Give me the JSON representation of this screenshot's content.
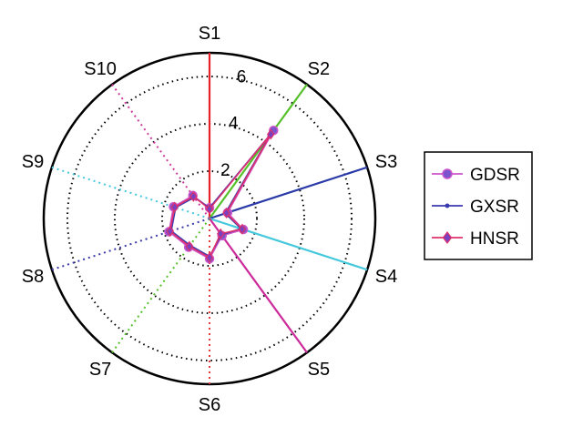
{
  "chart_data": {
    "type": "polar-radar",
    "title": "",
    "spokes": [
      "S1",
      "S2",
      "S3",
      "S4",
      "S5",
      "S6",
      "S7",
      "S8",
      "S9",
      "S10"
    ],
    "spoke_colors": [
      "#e8202a",
      "#55c02a",
      "#2a3aa8",
      "#44c8dc",
      "#cc2a9a",
      "#e83a3a",
      "#55c02a",
      "#3a3aa8",
      "#44c8dc",
      "#cc3a9a"
    ],
    "spoke_full_length": [
      true,
      true,
      true,
      true,
      true,
      false,
      false,
      false,
      false,
      false
    ],
    "r_ticks": [
      2,
      4,
      6
    ],
    "r_max": 7,
    "series": [
      {
        "name": "GDSR",
        "color": "#cc55cc",
        "marker": "circle",
        "values": [
          0.45,
          4.6,
          0.8,
          1.5,
          0.9,
          1.7,
          1.5,
          1.8,
          1.6,
          1.2
        ]
      },
      {
        "name": "GXSR",
        "color": "#3a3ab0",
        "marker": "dot",
        "values": [
          0.45,
          4.3,
          0.7,
          1.4,
          0.85,
          1.6,
          1.4,
          1.7,
          1.5,
          1.1
        ]
      },
      {
        "name": "HNSR",
        "color": "#e0306a",
        "marker": "diamond",
        "values": [
          0.4,
          4.4,
          0.75,
          1.45,
          0.8,
          1.65,
          1.45,
          1.75,
          1.55,
          1.15
        ]
      }
    ],
    "legend_position": "right"
  }
}
